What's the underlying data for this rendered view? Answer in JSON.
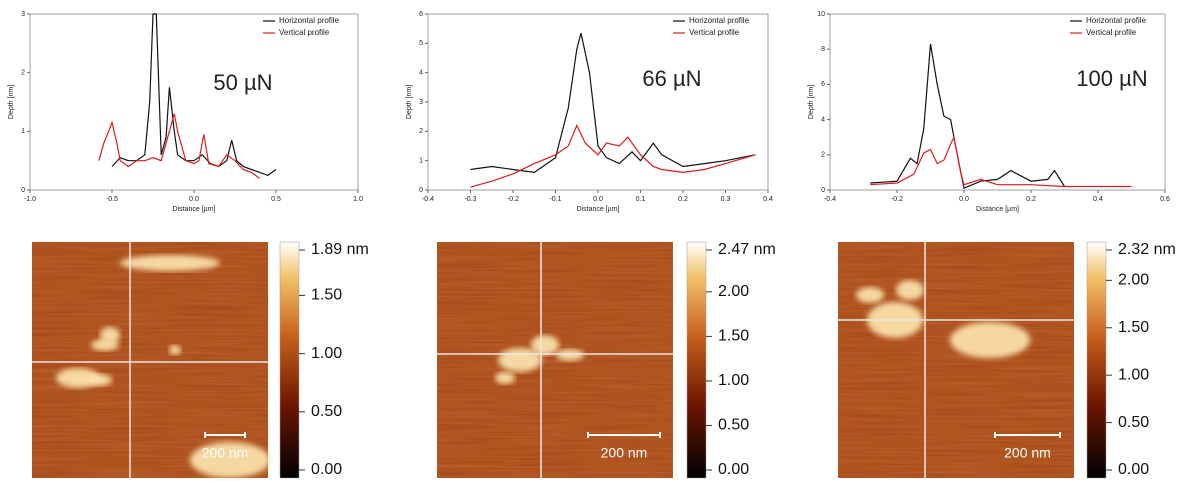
{
  "chart_data": [
    {
      "type": "line",
      "xlabel": "Distance [µm]",
      "ylabel": "Depth [nm]",
      "annotation": "50 µN",
      "xlim": [
        -1,
        1
      ],
      "xticks": [
        {
          "value": -1,
          "label": "-1.0"
        },
        -0.5,
        {
          "value": 0,
          "label": "0.0"
        },
        0.5,
        {
          "value": 1,
          "label": "1.0"
        }
      ],
      "ylim": [
        0,
        3
      ],
      "yticks": [
        0,
        1,
        2,
        3
      ],
      "series": [
        {
          "name": "Horizontal profile",
          "color": "#111111",
          "x": [
            -0.5,
            -0.45,
            -0.4,
            -0.35,
            -0.3,
            -0.27,
            -0.25,
            -0.23,
            -0.2,
            -0.17,
            -0.15,
            -0.12,
            -0.1,
            -0.05,
            0,
            0.05,
            0.1,
            0.15,
            0.2,
            0.23,
            0.26,
            0.3,
            0.35,
            0.4,
            0.45,
            0.5
          ],
          "values": [
            0.4,
            0.55,
            0.5,
            0.5,
            0.6,
            1.5,
            3,
            3,
            0.6,
            0.9,
            1.75,
            1.0,
            0.6,
            0.5,
            0.5,
            0.6,
            0.45,
            0.4,
            0.5,
            0.85,
            0.5,
            0.4,
            0.35,
            0.3,
            0.25,
            0.35
          ]
        },
        {
          "name": "Vertical profile",
          "color": "#dd1c1c",
          "x": [
            -0.58,
            -0.55,
            -0.52,
            -0.5,
            -0.47,
            -0.45,
            -0.4,
            -0.35,
            -0.3,
            -0.25,
            -0.2,
            -0.15,
            -0.12,
            -0.1,
            -0.05,
            0,
            0.03,
            0.06,
            0.09,
            0.15,
            0.2,
            0.25,
            0.3,
            0.35,
            0.4
          ],
          "values": [
            0.5,
            0.8,
            1.0,
            1.15,
            0.8,
            0.5,
            0.4,
            0.5,
            0.5,
            0.55,
            0.5,
            1.0,
            1.3,
            1.0,
            0.5,
            0.45,
            0.5,
            0.95,
            0.45,
            0.4,
            0.6,
            0.5,
            0.35,
            0.3,
            0.2
          ]
        }
      ]
    },
    {
      "type": "line",
      "xlabel": "Distance [µm]",
      "ylabel": "Depth [nm]",
      "annotation": "66 µN",
      "xlim": [
        -0.4,
        0.4
      ],
      "xticks": [
        -0.4,
        -0.3,
        -0.2,
        -0.1,
        {
          "value": 0,
          "label": "0.0"
        },
        0.1,
        0.2,
        0.3,
        0.4
      ],
      "ylim": [
        0,
        6
      ],
      "yticks": [
        0,
        1,
        2,
        3,
        4,
        5,
        6
      ],
      "series": [
        {
          "name": "Horizontal profile",
          "color": "#111111",
          "x": [
            -0.3,
            -0.25,
            -0.2,
            -0.15,
            -0.1,
            -0.07,
            -0.05,
            -0.04,
            -0.02,
            0,
            0.02,
            0.05,
            0.08,
            0.1,
            0.13,
            0.15,
            0.2,
            0.25,
            0.3,
            0.37
          ],
          "values": [
            0.7,
            0.8,
            0.7,
            0.6,
            1.1,
            2.8,
            4.8,
            5.35,
            4.0,
            1.5,
            1.1,
            0.9,
            1.3,
            1.0,
            1.6,
            1.2,
            0.8,
            0.9,
            1.0,
            1.2
          ]
        },
        {
          "name": "Vertical profile",
          "color": "#dd1c1c",
          "x": [
            -0.3,
            -0.25,
            -0.2,
            -0.15,
            -0.1,
            -0.07,
            -0.05,
            -0.03,
            0,
            0.02,
            0.05,
            0.07,
            0.1,
            0.13,
            0.15,
            0.2,
            0.25,
            0.3,
            0.37
          ],
          "values": [
            0.1,
            0.3,
            0.55,
            0.9,
            1.2,
            1.5,
            2.2,
            1.6,
            1.2,
            1.6,
            1.5,
            1.8,
            1.2,
            0.8,
            0.7,
            0.6,
            0.7,
            0.9,
            1.2
          ]
        }
      ]
    },
    {
      "type": "line",
      "xlabel": "Distance [µm]",
      "ylabel": "Depth [nm]",
      "annotation": "100 µN",
      "xlim": [
        -0.4,
        0.6
      ],
      "xticks": [
        -0.4,
        -0.2,
        {
          "value": 0,
          "label": "0.0"
        },
        0.2,
        0.4,
        0.6
      ],
      "ylim": [
        0,
        10
      ],
      "yticks": [
        0,
        2,
        4,
        6,
        8,
        10
      ],
      "series": [
        {
          "name": "Horizontal profile",
          "color": "#111111",
          "x": [
            -0.28,
            -0.2,
            -0.16,
            -0.14,
            -0.12,
            -0.1,
            -0.08,
            -0.06,
            -0.04,
            -0.02,
            0,
            0.05,
            0.1,
            0.14,
            0.2,
            0.25,
            0.27,
            0.3
          ],
          "values": [
            0.4,
            0.5,
            1.8,
            1.5,
            3.5,
            8.3,
            6.0,
            4.2,
            4.0,
            2.0,
            0.1,
            0.5,
            0.6,
            1.1,
            0.5,
            0.6,
            1.1,
            0.2
          ]
        },
        {
          "name": "Vertical profile",
          "color": "#dd1c1c",
          "x": [
            -0.28,
            -0.2,
            -0.15,
            -0.12,
            -0.1,
            -0.08,
            -0.06,
            -0.04,
            -0.03,
            -0.01,
            0,
            0.05,
            0.1,
            0.2,
            0.3,
            0.4,
            0.5
          ],
          "values": [
            0.3,
            0.4,
            0.9,
            2.1,
            2.3,
            1.5,
            1.7,
            2.6,
            3.0,
            1.0,
            0.3,
            0.6,
            0.3,
            0.3,
            0.2,
            0.2,
            0.2
          ]
        }
      ]
    }
  ],
  "afm_images": [
    {
      "colorbar_max": {
        "value": 1.89,
        "label": "1.89 nm"
      },
      "colorbar_ticks": [
        {
          "value": 0,
          "label": "0.00"
        },
        {
          "value": 0.5,
          "label": "0.50"
        },
        {
          "value": 1,
          "label": "1.00"
        },
        {
          "value": 1.5,
          "label": "1.50"
        }
      ],
      "scale_bar": "200 nm"
    },
    {
      "colorbar_max": {
        "value": 2.47,
        "label": "2.47 nm"
      },
      "colorbar_ticks": [
        {
          "value": 0,
          "label": "0.00"
        },
        {
          "value": 0.5,
          "label": "0.50"
        },
        {
          "value": 1,
          "label": "1.00"
        },
        {
          "value": 1.5,
          "label": "1.50"
        },
        {
          "value": 2,
          "label": "2.00"
        }
      ],
      "scale_bar": "200 nm"
    },
    {
      "colorbar_max": {
        "value": 2.32,
        "label": "2.32 nm"
      },
      "colorbar_ticks": [
        {
          "value": 0,
          "label": "0.00"
        },
        {
          "value": 0.5,
          "label": "0.50"
        },
        {
          "value": 1,
          "label": "1.00"
        },
        {
          "value": 1.5,
          "label": "1.50"
        },
        {
          "value": 2,
          "label": "2.00"
        }
      ],
      "scale_bar": "200 nm"
    }
  ]
}
